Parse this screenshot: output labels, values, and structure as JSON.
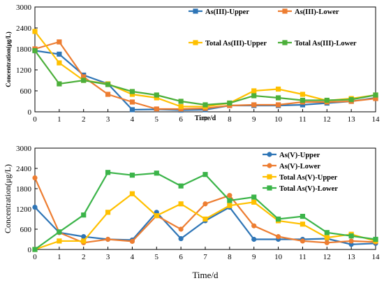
{
  "chart_data": [
    {
      "type": "line",
      "xlabel": "Time/d",
      "ylabel": "Concentration(μg/L)",
      "x": [
        0,
        1,
        2,
        3,
        4,
        5,
        6,
        7,
        8,
        9,
        10,
        11,
        12,
        13,
        14
      ],
      "xlim": [
        0,
        14
      ],
      "ylim": [
        0,
        3000
      ],
      "yticks": [
        0,
        600,
        1200,
        1800,
        2400,
        3000
      ],
      "grid": false,
      "legend": "upper-right",
      "marker": "square",
      "series": [
        {
          "name": "As(III)-Upper",
          "color": "#2e75b6",
          "values": [
            1750,
            1650,
            1050,
            800,
            60,
            70,
            50,
            60,
            180,
            180,
            180,
            200,
            250,
            300,
            400
          ]
        },
        {
          "name": "As(III)-Lower",
          "color": "#ed7d31",
          "values": [
            1800,
            2000,
            1000,
            500,
            280,
            80,
            80,
            100,
            180,
            200,
            200,
            280,
            280,
            300,
            380
          ]
        },
        {
          "name": "Total As(III)-Upper",
          "color": "#ffc000",
          "values": [
            2300,
            1400,
            900,
            800,
            500,
            400,
            150,
            150,
            250,
            600,
            650,
            500,
            320,
            380,
            480
          ]
        },
        {
          "name": "Total As(III)-Lower",
          "color": "#4caf3a",
          "values": [
            1750,
            800,
            900,
            780,
            580,
            480,
            300,
            200,
            250,
            460,
            400,
            330,
            330,
            350,
            480
          ]
        }
      ]
    },
    {
      "type": "line",
      "xlabel": "Time/d",
      "ylabel": "Concentration(μg/L)",
      "x": [
        0,
        1,
        2,
        3,
        4,
        5,
        6,
        7,
        8,
        9,
        10,
        11,
        12,
        13,
        14
      ],
      "xlim": [
        0,
        14
      ],
      "ylim": [
        0,
        3000
      ],
      "yticks": [
        0,
        600,
        1200,
        1800,
        2400,
        3000
      ],
      "grid": false,
      "legend": "upper-right",
      "series": [
        {
          "name": "As(V)-Upper",
          "color": "#2e75b6",
          "marker": "circle",
          "values": [
            1250,
            500,
            380,
            300,
            280,
            1100,
            320,
            850,
            1250,
            300,
            300,
            300,
            320,
            150,
            180
          ]
        },
        {
          "name": "As(V)-Lower",
          "color": "#ed7d31",
          "marker": "circle",
          "values": [
            2120,
            500,
            200,
            300,
            240,
            1000,
            600,
            1350,
            1600,
            700,
            380,
            250,
            200,
            250,
            220
          ]
        },
        {
          "name": "Total As(V)-Upper",
          "color": "#ffc000",
          "marker": "square",
          "values": [
            0,
            250,
            250,
            1100,
            1650,
            1000,
            1350,
            900,
            1300,
            1400,
            850,
            750,
            350,
            450,
            250
          ]
        },
        {
          "name": "Total As(V)-Lower",
          "color": "#3bb449",
          "marker": "square",
          "values": [
            0,
            520,
            1020,
            2280,
            2200,
            2260,
            1880,
            2220,
            1450,
            1550,
            900,
            980,
            500,
            400,
            300
          ]
        }
      ]
    }
  ]
}
